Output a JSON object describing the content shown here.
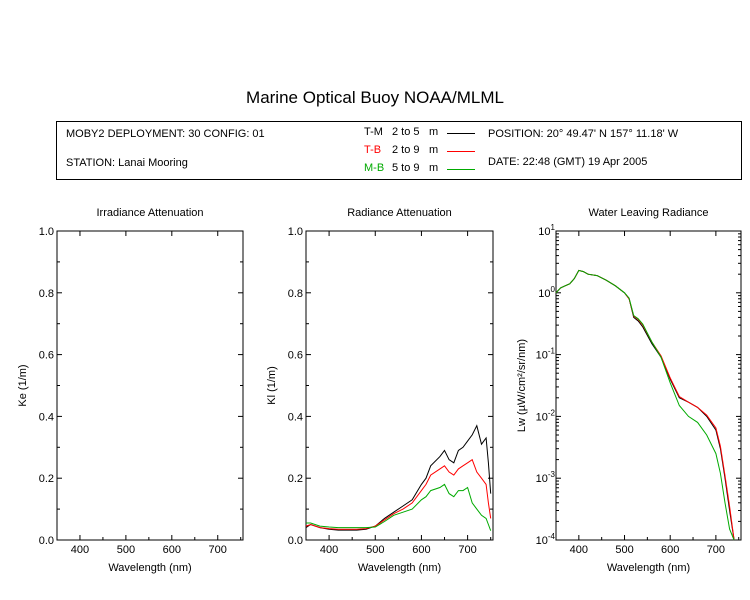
{
  "title": "Marine Optical Buoy NOAA/MLML",
  "info": {
    "deployment": "MOBY2 DEPLOYMENT: 30 CONFIG: 01",
    "station": "STATION: Lanai Mooring",
    "position": "POSITION: 20° 49.47' N   157° 11.18' W",
    "date": "DATE: 22:48 (GMT) 19 Apr 2005",
    "legend": [
      {
        "code": "T-M",
        "range": "2 to 5",
        "unit": "m",
        "color": "#000000"
      },
      {
        "code": "T-B",
        "range": "2 to 9",
        "unit": "m",
        "color": "#ff0000"
      },
      {
        "code": "M-B",
        "range": "5 to 9",
        "unit": "m",
        "color": "#00aa00"
      }
    ]
  },
  "chart_data": [
    {
      "type": "line",
      "title": "Irradiance Attenuation",
      "xlabel": "Wavelength (nm)",
      "ylabel": "Ke  (1/m)",
      "xlim": [
        350,
        755
      ],
      "ylim": [
        0,
        1.0
      ],
      "xticks": [
        "400",
        "500",
        "600",
        "700"
      ],
      "yticks": [
        "0.0",
        "0.2",
        "0.4",
        "0.6",
        "0.8",
        "1.0"
      ],
      "series": []
    },
    {
      "type": "line",
      "title": "Radiance Attenuation",
      "xlabel": "Wavelength (nm)",
      "ylabel": "Kl  (1/m)",
      "xlim": [
        350,
        755
      ],
      "ylim": [
        0,
        1.0
      ],
      "xticks": [
        "400",
        "500",
        "600",
        "700"
      ],
      "yticks": [
        "0.0",
        "0.2",
        "0.4",
        "0.6",
        "0.8",
        "1.0"
      ],
      "series": [
        {
          "name": "T-M",
          "color": "#000000",
          "x": [
            350,
            360,
            380,
            400,
            420,
            440,
            460,
            480,
            500,
            520,
            540,
            560,
            580,
            600,
            610,
            620,
            640,
            650,
            660,
            670,
            680,
            690,
            700,
            710,
            720,
            730,
            740,
            745,
            750
          ],
          "y": [
            0.04,
            0.05,
            0.04,
            0.035,
            0.032,
            0.032,
            0.032,
            0.035,
            0.045,
            0.07,
            0.09,
            0.11,
            0.13,
            0.18,
            0.2,
            0.24,
            0.27,
            0.29,
            0.26,
            0.25,
            0.29,
            0.3,
            0.32,
            0.34,
            0.37,
            0.31,
            0.33,
            0.25,
            0.15
          ]
        },
        {
          "name": "T-B",
          "color": "#ff0000",
          "x": [
            350,
            360,
            380,
            400,
            420,
            440,
            460,
            480,
            500,
            520,
            540,
            560,
            580,
            600,
            610,
            620,
            640,
            650,
            660,
            670,
            680,
            690,
            700,
            710,
            720,
            730,
            740,
            745,
            750
          ],
          "y": [
            0.045,
            0.05,
            0.04,
            0.037,
            0.035,
            0.035,
            0.035,
            0.037,
            0.045,
            0.065,
            0.085,
            0.1,
            0.12,
            0.16,
            0.18,
            0.21,
            0.23,
            0.24,
            0.22,
            0.21,
            0.23,
            0.24,
            0.25,
            0.26,
            0.22,
            0.2,
            0.18,
            0.12,
            0.07
          ]
        },
        {
          "name": "M-B",
          "color": "#00aa00",
          "x": [
            350,
            360,
            380,
            400,
            420,
            440,
            460,
            480,
            500,
            520,
            540,
            560,
            580,
            600,
            610,
            620,
            640,
            650,
            660,
            670,
            680,
            690,
            700,
            710,
            720,
            730,
            740,
            745,
            750
          ],
          "y": [
            0.055,
            0.055,
            0.045,
            0.042,
            0.04,
            0.04,
            0.04,
            0.04,
            0.042,
            0.06,
            0.08,
            0.09,
            0.1,
            0.13,
            0.14,
            0.16,
            0.17,
            0.18,
            0.15,
            0.14,
            0.16,
            0.16,
            0.17,
            0.12,
            0.1,
            0.08,
            0.07,
            0.05,
            0.03
          ]
        }
      ]
    },
    {
      "type": "line",
      "title": "Water Leaving Radiance",
      "xlabel": "Wavelength (nm)",
      "ylabel": "Lw  (µW/cm²/sr/nm)",
      "xlim": [
        350,
        755
      ],
      "ylim": [
        0.0001,
        10
      ],
      "yscale": "log",
      "xticks": [
        "400",
        "500",
        "600",
        "700"
      ],
      "yticks": [
        "10^1",
        "10^0",
        "10^-1",
        "10^-2",
        "10^-3",
        "10^-4"
      ],
      "series": [
        {
          "name": "T-M",
          "color": "#000000",
          "x": [
            350,
            360,
            370,
            380,
            390,
            400,
            410,
            420,
            440,
            460,
            480,
            500,
            510,
            520,
            530,
            540,
            560,
            580,
            600,
            620,
            640,
            660,
            680,
            700,
            710,
            720,
            730,
            740
          ],
          "y": [
            1.0,
            1.2,
            1.3,
            1.4,
            1.7,
            2.3,
            2.2,
            2.0,
            1.9,
            1.6,
            1.3,
            1.0,
            0.8,
            0.4,
            0.35,
            0.28,
            0.15,
            0.09,
            0.04,
            0.02,
            0.017,
            0.014,
            0.01,
            0.006,
            0.003,
            0.001,
            0.0003,
            0.0001
          ]
        },
        {
          "name": "T-B",
          "color": "#ff0000",
          "x": [
            350,
            360,
            370,
            380,
            390,
            400,
            410,
            420,
            440,
            460,
            480,
            500,
            510,
            520,
            530,
            540,
            560,
            580,
            600,
            620,
            640,
            660,
            680,
            700,
            710,
            720,
            730,
            740
          ],
          "y": [
            1.0,
            1.2,
            1.3,
            1.4,
            1.7,
            2.3,
            2.2,
            2.0,
            1.9,
            1.6,
            1.3,
            1.0,
            0.8,
            0.42,
            0.37,
            0.3,
            0.16,
            0.095,
            0.042,
            0.021,
            0.017,
            0.014,
            0.0105,
            0.0065,
            0.0033,
            0.0011,
            0.00035,
            0.0001
          ]
        },
        {
          "name": "M-B",
          "color": "#00aa00",
          "x": [
            350,
            360,
            370,
            380,
            390,
            400,
            410,
            420,
            440,
            460,
            480,
            500,
            510,
            520,
            530,
            540,
            560,
            580,
            600,
            620,
            640,
            660,
            680,
            700,
            710,
            720,
            730,
            740
          ],
          "y": [
            1.0,
            1.2,
            1.3,
            1.4,
            1.7,
            2.3,
            2.2,
            2.0,
            1.9,
            1.6,
            1.3,
            1.0,
            0.82,
            0.43,
            0.38,
            0.31,
            0.16,
            0.09,
            0.035,
            0.015,
            0.01,
            0.008,
            0.005,
            0.0025,
            0.0012,
            0.0004,
            0.00015,
            0.0001
          ]
        }
      ]
    }
  ]
}
